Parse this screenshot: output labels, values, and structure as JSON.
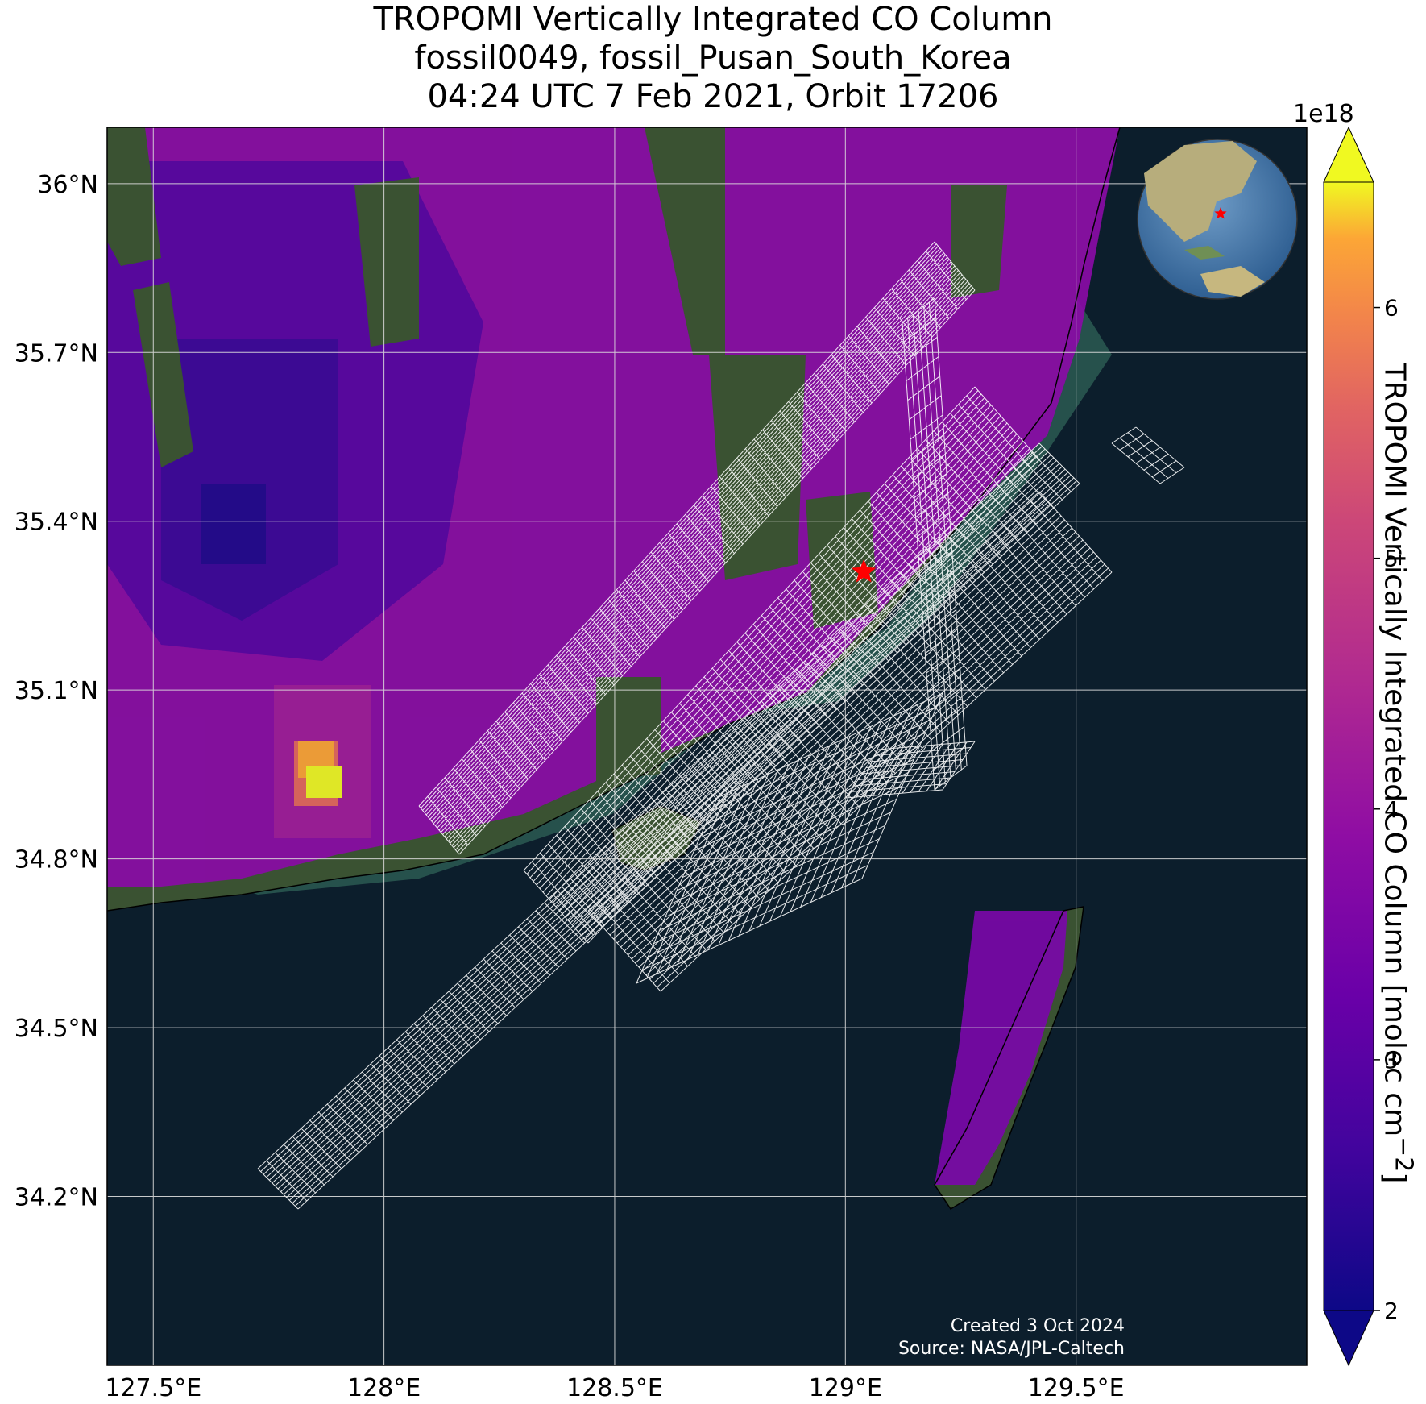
{
  "title": {
    "line1": "TROPOMI Vertically Integrated CO Column",
    "line2": "fossil0049, fossil_Pusan_South_Korea",
    "line3": "04:24 UTC 7 Feb 2021, Orbit 17206"
  },
  "map": {
    "lon_range": [
      127.4,
      130.0
    ],
    "lat_range": [
      33.9,
      36.1
    ],
    "x_ticks": [
      {
        "value": 127.5,
        "label": "127.5°E"
      },
      {
        "value": 128.0,
        "label": "128°E"
      },
      {
        "value": 128.5,
        "label": "128.5°E"
      },
      {
        "value": 129.0,
        "label": "129°E"
      },
      {
        "value": 129.5,
        "label": "129.5°E"
      }
    ],
    "y_ticks": [
      {
        "value": 36.0,
        "label": "36°N"
      },
      {
        "value": 35.7,
        "label": "35.7°N"
      },
      {
        "value": 35.4,
        "label": "35.4°N"
      },
      {
        "value": 35.1,
        "label": "35.1°N"
      },
      {
        "value": 34.8,
        "label": "34.8°N"
      },
      {
        "value": 34.5,
        "label": "34.5°N"
      },
      {
        "value": 34.2,
        "label": "34.2°N"
      }
    ],
    "gridlines": true,
    "target_marker": {
      "lon": 129.04,
      "lat": 35.31,
      "color": "#ff0000"
    },
    "colors": {
      "ocean": "#0c1e2c",
      "land": "#3a5232",
      "shelf": "#2c5a52",
      "grid": "#dddddd",
      "swath": "#ffffff"
    }
  },
  "colorbar": {
    "label": "TROPOMI Vertically Integrated CO Column [molec cm",
    "label_exp": "−2",
    "label_end": "]",
    "multiplier": "1e18",
    "range": [
      2,
      6.5
    ],
    "ticks": [
      {
        "value": 2,
        "label": "2"
      },
      {
        "value": 3,
        "label": "3"
      },
      {
        "value": 4,
        "label": "4"
      },
      {
        "value": 5,
        "label": "5"
      },
      {
        "value": 6,
        "label": "6"
      }
    ],
    "extend": "both",
    "colormap": "plasma"
  },
  "inset": {
    "type": "globe",
    "marker_color": "#ff0000"
  },
  "credit": {
    "line1": "Created 3 Oct 2024",
    "line2": "Source: NASA/JPL-Caltech"
  }
}
